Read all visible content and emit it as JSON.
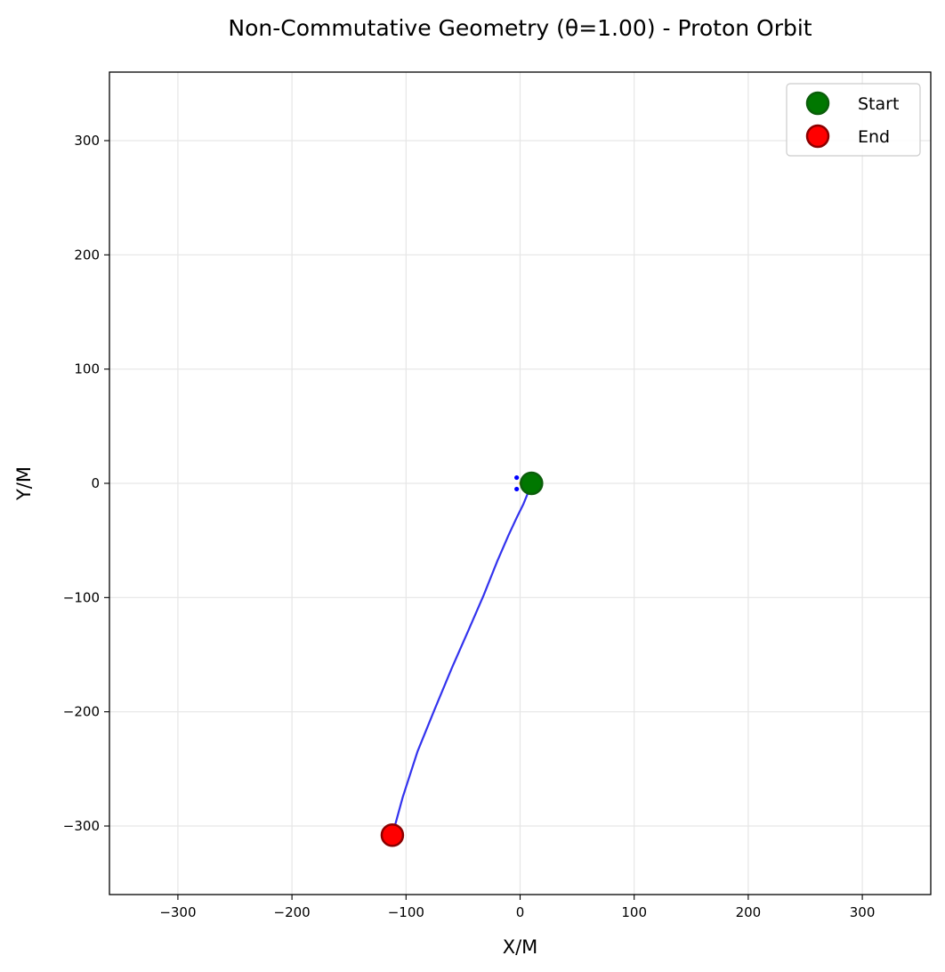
{
  "chart_data": {
    "type": "line",
    "title": "Non-Commutative Geometry (θ=1.00) - Proton Orbit",
    "xlabel": "X/M",
    "ylabel": "Y/M",
    "xlim": [
      -360,
      360
    ],
    "ylim": [
      -360,
      360
    ],
    "xticks": [
      -300,
      -200,
      -100,
      0,
      100,
      200,
      300
    ],
    "yticks": [
      -300,
      -200,
      -100,
      0,
      100,
      200,
      300
    ],
    "xtick_labels": [
      "−300",
      "−200",
      "−100",
      "0",
      "100",
      "200",
      "300"
    ],
    "ytick_labels": [
      "−300",
      "−200",
      "−100",
      "0",
      "100",
      "200",
      "300"
    ],
    "grid": true,
    "legend_position": "top-right",
    "series": [
      {
        "kind": "line",
        "color": "#3333ee",
        "x": [
          10,
          7,
          3,
          -3,
          -10,
          -20,
          -32,
          -45,
          -60,
          -75,
          -90,
          -103,
          -112
        ],
        "y": [
          0,
          -8,
          -18,
          -30,
          -45,
          -68,
          -98,
          -128,
          -162,
          -198,
          -235,
          -275,
          -308
        ]
      },
      {
        "kind": "marker",
        "name": "Start",
        "x": [
          10
        ],
        "y": [
          0
        ],
        "color": "#007700",
        "edge": "#0b5e0b"
      },
      {
        "kind": "marker",
        "name": "End",
        "x": [
          -112
        ],
        "y": [
          -308
        ],
        "color": "#ff0000",
        "edge": "#8b0000"
      }
    ],
    "small_marks": [
      {
        "x": -3,
        "y": 5,
        "color": "#0000ff"
      },
      {
        "x": -3,
        "y": -5,
        "color": "#0000ff"
      },
      {
        "x": 1,
        "y": 0,
        "color": "#f5a623"
      }
    ]
  }
}
